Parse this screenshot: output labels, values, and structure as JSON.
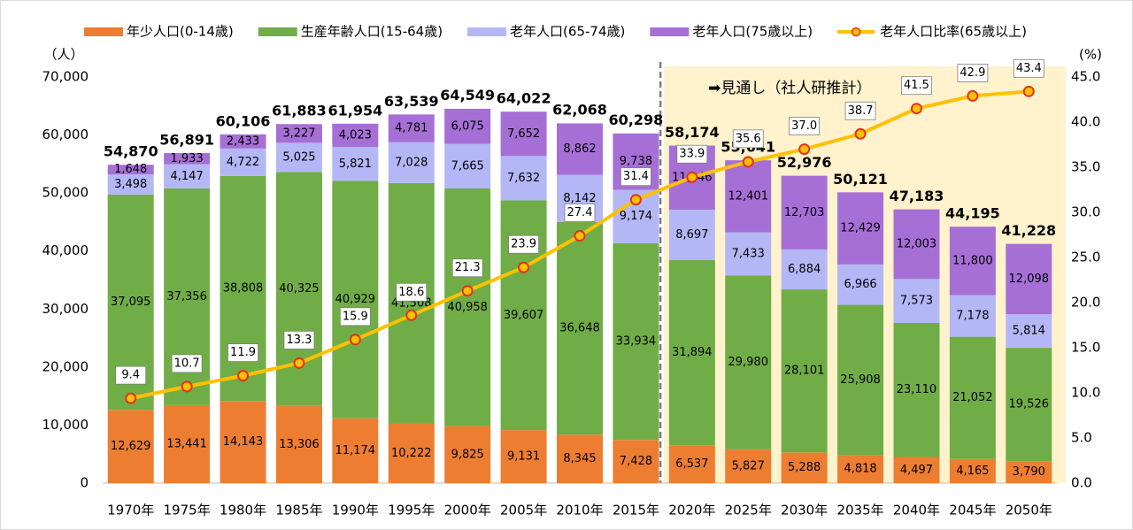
{
  "chart_data": {
    "type": "bar",
    "stacked": true,
    "categories": [
      "1970年",
      "1975年",
      "1980年",
      "1985年",
      "1990年",
      "1995年",
      "2000年",
      "2005年",
      "2010年",
      "2015年",
      "2020年",
      "2025年",
      "2030年",
      "2035年",
      "2040年",
      "2045年",
      "2050年"
    ],
    "series": [
      {
        "name": "年少人口(0-14歳)",
        "color": "#ed7d31",
        "values": [
          12629,
          13441,
          14143,
          13306,
          11174,
          10222,
          9825,
          9131,
          8345,
          7428,
          6537,
          5827,
          5288,
          4818,
          4497,
          4165,
          3790
        ],
        "value_labels": [
          "12,629",
          "13,441",
          "14,143",
          "13,306",
          "11,174",
          "10,222",
          "9,825",
          "9,131",
          "8,345",
          "7,428",
          "6,537",
          "5,827",
          "5,288",
          "4,818",
          "4,497",
          "4,165",
          "3,790"
        ]
      },
      {
        "name": "生産年齢人口(15-64歳)",
        "color": "#70ad47",
        "values": [
          37095,
          37356,
          38808,
          40325,
          40929,
          41508,
          40958,
          39607,
          36648,
          33934,
          31894,
          29980,
          28101,
          25908,
          23110,
          21052,
          19526
        ],
        "value_labels": [
          "37,095",
          "37,356",
          "38,808",
          "40,325",
          "40,929",
          "41,508",
          "40,958",
          "39,607",
          "36,648",
          "33,934",
          "31,894",
          "29,980",
          "28,101",
          "25,908",
          "23,110",
          "21,052",
          "19,526"
        ]
      },
      {
        "name": "老年人口(65-74歳)",
        "color": "#b4b7f5",
        "values": [
          3498,
          4147,
          4722,
          5025,
          5821,
          7028,
          7665,
          7632,
          8142,
          9174,
          8697,
          7433,
          6884,
          6966,
          7573,
          7178,
          5814
        ],
        "value_labels": [
          "3,498",
          "4,147",
          "4,722",
          "5,025",
          "5,821",
          "7,028",
          "7,665",
          "7,632",
          "8,142",
          "9,174",
          "8,697",
          "7,433",
          "6,884",
          "6,966",
          "7,573",
          "7,178",
          "5,814"
        ]
      },
      {
        "name": "老年人口(75歳以上)",
        "color": "#a66fd6",
        "values": [
          1648,
          1933,
          2433,
          3227,
          4023,
          4781,
          6075,
          7652,
          8862,
          9738,
          11046,
          12401,
          12703,
          12429,
          12003,
          11800,
          12098
        ],
        "value_labels": [
          "1,648",
          "1,933",
          "2,433",
          "3,227",
          "4,023",
          "4,781",
          "6,075",
          "7,652",
          "8,862",
          "9,738",
          "11,046",
          "12,401",
          "12,703",
          "12,429",
          "12,003",
          "11,800",
          "12,098"
        ]
      },
      {
        "name": "老年人口比率(65歳以上)",
        "type": "line",
        "axis": "y2",
        "color": "#ffc000",
        "marker_edge": "#e5321d",
        "values": [
          9.4,
          10.7,
          11.9,
          13.3,
          15.9,
          18.6,
          21.3,
          23.9,
          27.4,
          31.4,
          33.9,
          35.6,
          37.0,
          38.7,
          41.5,
          42.9,
          43.4
        ],
        "value_labels": [
          "9.4",
          "10.7",
          "11.9",
          "13.3",
          "15.9",
          "18.6",
          "21.3",
          "23.9",
          "27.4",
          "31.4",
          "33.9",
          "35.6",
          "37.0",
          "38.7",
          "41.5",
          "42.9",
          "43.4"
        ]
      }
    ],
    "totals": {
      "values": [
        54870,
        56891,
        60106,
        61883,
        61954,
        63539,
        64549,
        64022,
        62068,
        60298,
        58174,
        55641,
        52976,
        50121,
        47183,
        44195,
        41228
      ],
      "value_labels": [
        "54,870",
        "56,891",
        "60,106",
        "61,883",
        "61,954",
        "63,539",
        "64,549",
        "64,022",
        "62,068",
        "60,298",
        "58,174",
        "55,641",
        "52,976",
        "50,121",
        "47,183",
        "44,195",
        "41,228"
      ]
    },
    "y_label": "（人）",
    "y2_label": "(%)",
    "ylim": [
      0,
      70000
    ],
    "yticks": [
      {
        "value": 0,
        "label": "0"
      },
      {
        "value": 10000,
        "label": "10,000"
      },
      {
        "value": 20000,
        "label": "20,000"
      },
      {
        "value": 30000,
        "label": "30,000"
      },
      {
        "value": 40000,
        "label": "40,000"
      },
      {
        "value": 50000,
        "label": "50,000"
      },
      {
        "value": 60000,
        "label": "60,000"
      },
      {
        "value": 70000,
        "label": "70,000"
      }
    ],
    "y2lim": [
      0,
      45
    ],
    "y2ticks": [
      {
        "value": 0,
        "label": "0.0"
      },
      {
        "value": 5,
        "label": "5.0"
      },
      {
        "value": 10,
        "label": "10.0"
      },
      {
        "value": 15,
        "label": "15.0"
      },
      {
        "value": 20,
        "label": "20.0"
      },
      {
        "value": 25,
        "label": "25.0"
      },
      {
        "value": 30,
        "label": "30.0"
      },
      {
        "value": 35,
        "label": "35.0"
      },
      {
        "value": 40,
        "label": "40.0"
      },
      {
        "value": 45,
        "label": "45.0"
      }
    ],
    "annotation": {
      "text": "➡見通し（社人研推計）",
      "from": "2020年",
      "color": "#fff2cc"
    },
    "legend": "top"
  }
}
